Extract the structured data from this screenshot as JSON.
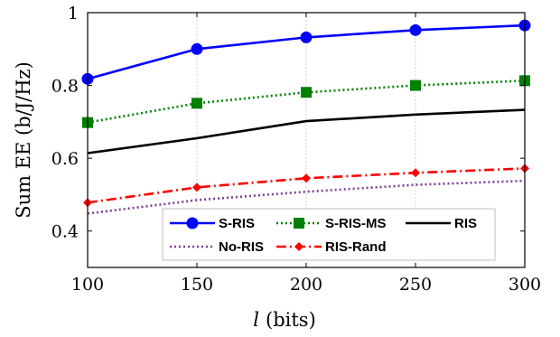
{
  "chart_data": {
    "type": "line",
    "x": [
      100,
      150,
      200,
      250,
      300
    ],
    "xlim": [
      100,
      300
    ],
    "ylim": [
      0.3,
      1.0
    ],
    "x_ticks": [
      "100",
      "150",
      "200",
      "250",
      "300"
    ],
    "y_ticks": [
      "0.4",
      "0.6",
      "0.8",
      "1"
    ],
    "x_tick_values": [
      100,
      150,
      200,
      250,
      300
    ],
    "y_tick_values": [
      0.4,
      0.6,
      0.8,
      1.0
    ],
    "xlabel": "l",
    "xlabel_unit": "(bits)",
    "ylabel": "Sum EE (b/J/Hz)",
    "grid": "vertical",
    "legend_position": "bottom-center",
    "series": [
      {
        "name": "S-RIS",
        "color": "#0000ff",
        "dash": "solid",
        "marker": "circle",
        "values": [
          0.818,
          0.9,
          0.932,
          0.952,
          0.965
        ]
      },
      {
        "name": "S-RIS-MS",
        "color": "#008000",
        "dash": "dotted",
        "marker": "square",
        "values": [
          0.698,
          0.751,
          0.781,
          0.8,
          0.813
        ]
      },
      {
        "name": "RIS",
        "color": "#000000",
        "dash": "solid",
        "marker": "none",
        "values": [
          0.614,
          0.655,
          0.702,
          0.72,
          0.733
        ]
      },
      {
        "name": "No-RIS",
        "color": "#7f3f98",
        "dash": "dotted",
        "marker": "none",
        "values": [
          0.448,
          0.485,
          0.508,
          0.527,
          0.538
        ]
      },
      {
        "name": "RIS-Rand",
        "color": "#ff0000",
        "dash": "dashdot",
        "marker": "diamond",
        "values": [
          0.478,
          0.52,
          0.545,
          0.56,
          0.572
        ]
      }
    ]
  }
}
